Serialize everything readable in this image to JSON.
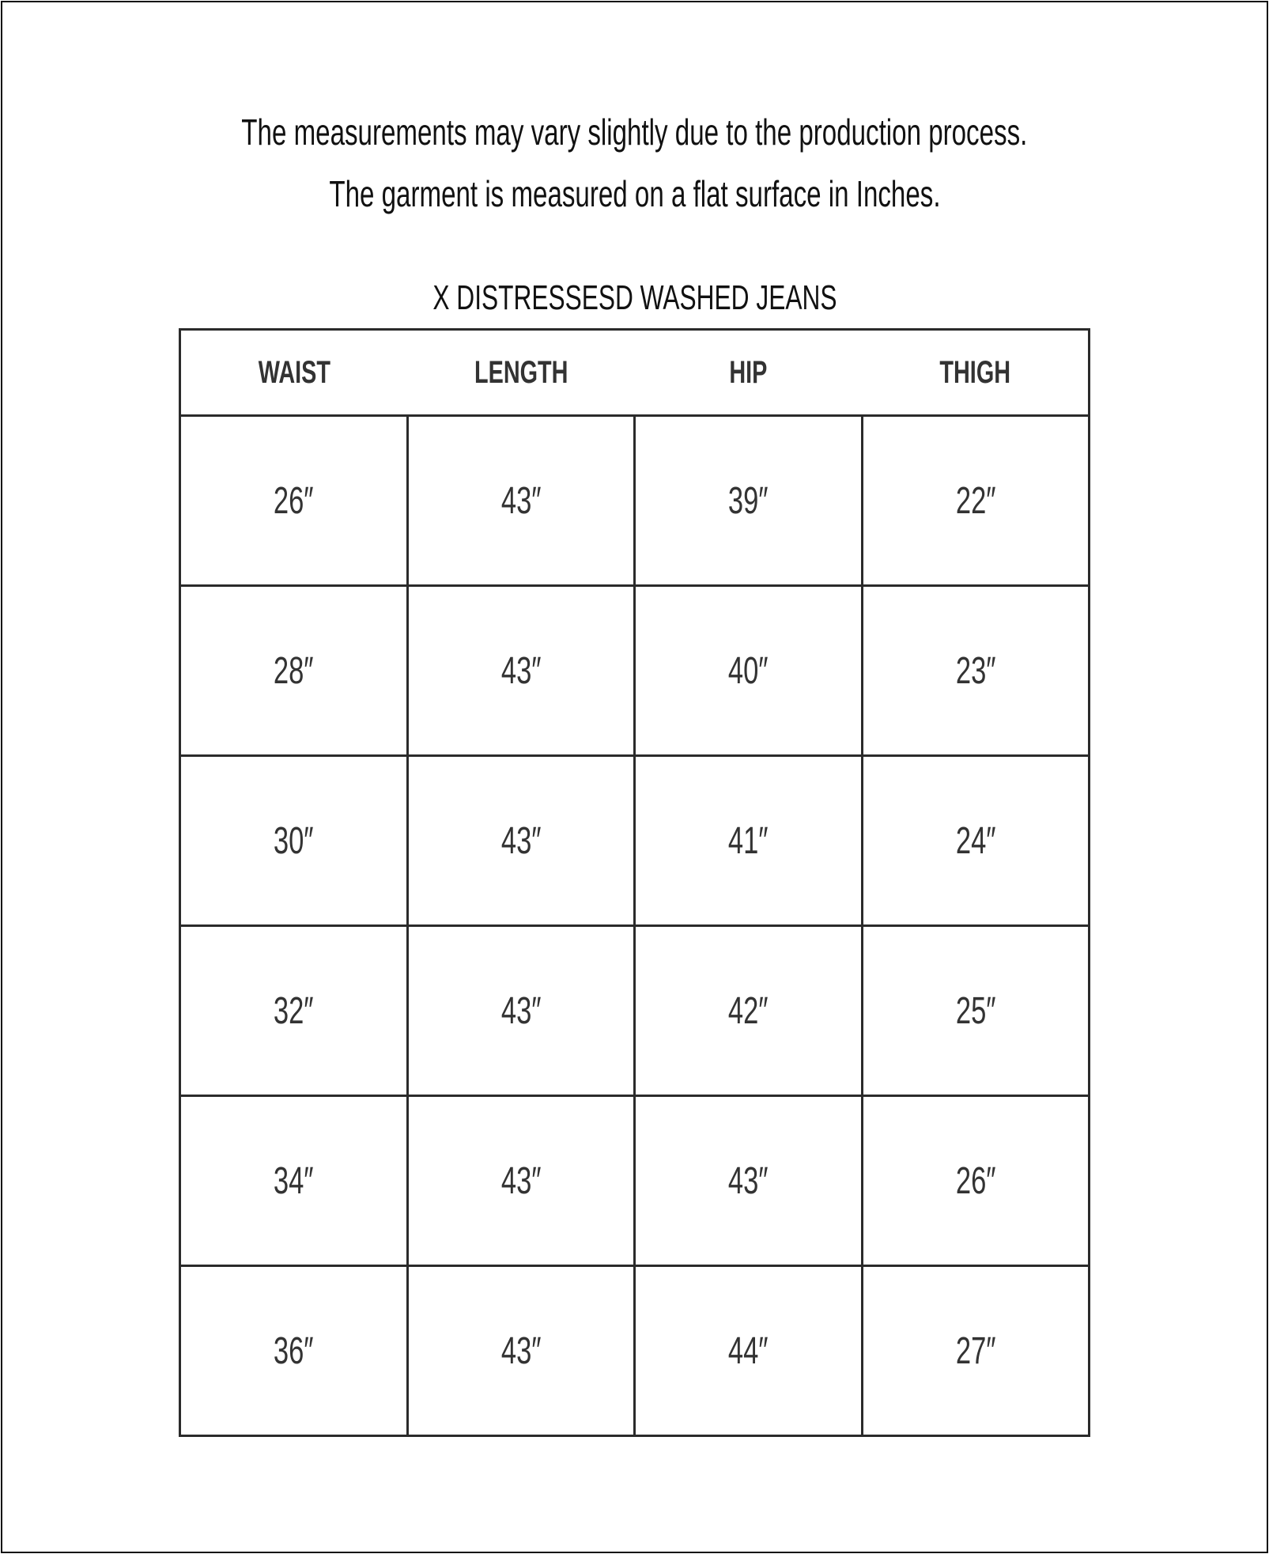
{
  "notes": [
    "The measurements may vary slightly due to the production process.",
    "The garment is measured on a flat surface in Inches."
  ],
  "table": {
    "title": "X DISTRESSESD WASHED JEANS",
    "headers": [
      "WAIST",
      "LENGTH",
      "HIP",
      "THIGH"
    ],
    "rows": [
      [
        "26″",
        "43″",
        "39″",
        "22″"
      ],
      [
        "28″",
        "43″",
        "40″",
        "23″"
      ],
      [
        "30″",
        "43″",
        "41″",
        "24″"
      ],
      [
        "32″",
        "43″",
        "42″",
        "25″"
      ],
      [
        "34″",
        "43″",
        "43″",
        "26″"
      ],
      [
        "36″",
        "43″",
        "44″",
        "27″"
      ]
    ]
  }
}
